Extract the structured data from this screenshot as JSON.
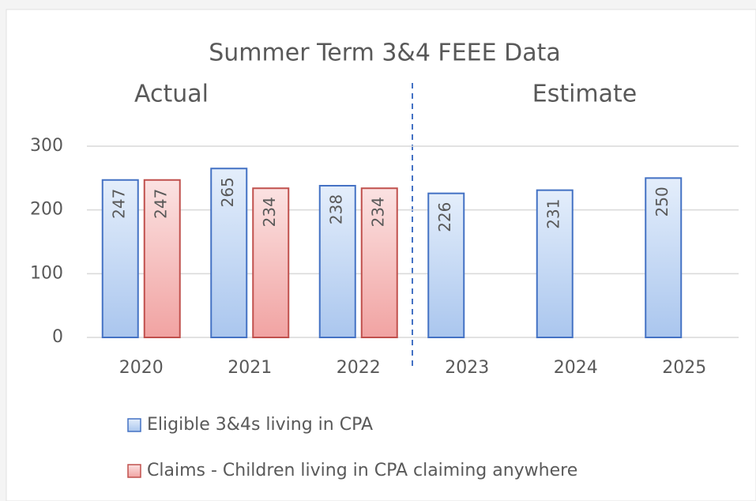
{
  "chart_data": {
    "type": "bar",
    "title": "Summer  Term  3&4 FEEE Data",
    "annotations": [
      "Actual",
      "Estimate"
    ],
    "categories": [
      "2020",
      "2021",
      "2022",
      "2023",
      "2024",
      "2025"
    ],
    "series": [
      {
        "name": "Eligible 3&4s living in CPA",
        "color": "#4472c4",
        "values": [
          247,
          265,
          238,
          226,
          231,
          250
        ]
      },
      {
        "name": "Claims - Children living in CPA claiming anywhere",
        "color": "#c0504d",
        "values": [
          247,
          234,
          234,
          null,
          null,
          null
        ]
      }
    ],
    "ylim": [
      0,
      300
    ],
    "yticks": [
      0,
      100,
      200,
      300
    ],
    "grid": true,
    "legend": "bottom"
  }
}
